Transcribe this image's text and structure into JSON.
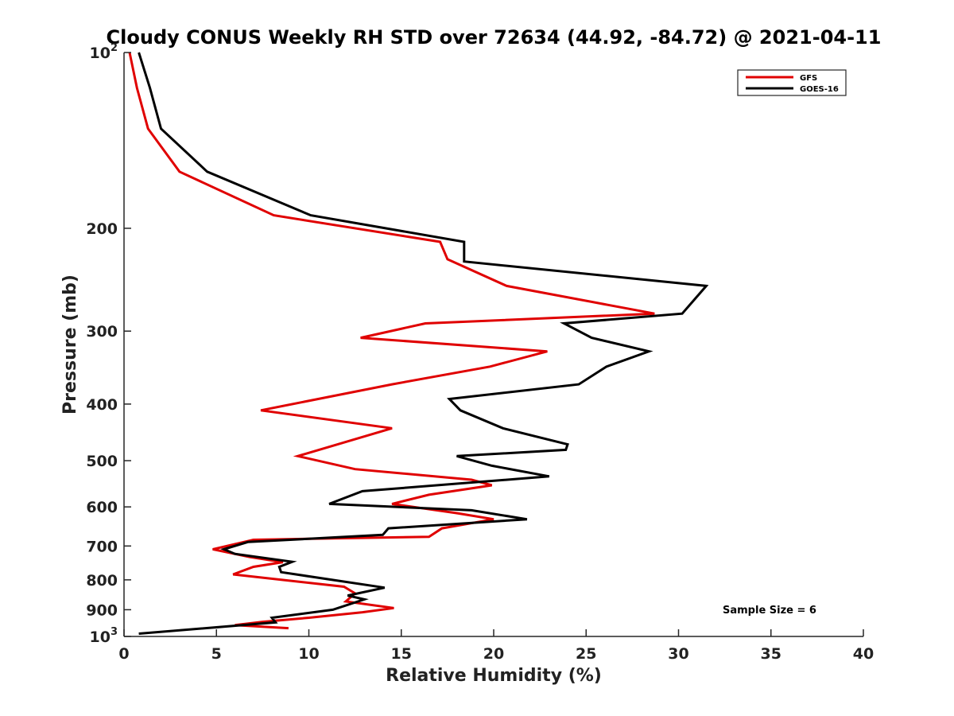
{
  "chart_data": {
    "type": "line",
    "title": "Cloudy CONUS Weekly RH STD over 72634 (44.92, -84.72) @ 2021-04-11",
    "xlabel": "Relative Humidity (%)",
    "ylabel": "Pressure (mb)",
    "xlim": [
      0,
      40
    ],
    "ylim": [
      100,
      1000
    ],
    "y_scale": "log",
    "y_reversed": true,
    "x_ticks": [
      0,
      5,
      10,
      15,
      20,
      25,
      30,
      35,
      40
    ],
    "x_tick_labels": [
      "0",
      "5",
      "10",
      "15",
      "20",
      "25",
      "30",
      "35",
      "40"
    ],
    "y_ticks": [
      {
        "value": 100,
        "label": "10",
        "sup": "2"
      },
      {
        "value": 200,
        "label": "200",
        "sup": ""
      },
      {
        "value": 300,
        "label": "300",
        "sup": ""
      },
      {
        "value": 400,
        "label": "400",
        "sup": ""
      },
      {
        "value": 500,
        "label": "500",
        "sup": ""
      },
      {
        "value": 600,
        "label": "600",
        "sup": ""
      },
      {
        "value": 700,
        "label": "700",
        "sup": ""
      },
      {
        "value": 800,
        "label": "800",
        "sup": ""
      },
      {
        "value": 900,
        "label": "900",
        "sup": ""
      },
      {
        "value": 1000,
        "label": "10",
        "sup": "3"
      }
    ],
    "grid": false,
    "legend_position": "top-right",
    "annotation": "Sample Size = 6",
    "series": [
      {
        "name": "GFS",
        "color": "#e00000",
        "points": [
          [
            0.3,
            100
          ],
          [
            0.7,
            115
          ],
          [
            1.3,
            135
          ],
          [
            3.0,
            160
          ],
          [
            8.1,
            190
          ],
          [
            17.1,
            211
          ],
          [
            17.5,
            226
          ],
          [
            20.7,
            251
          ],
          [
            28.7,
            280
          ],
          [
            16.3,
            291
          ],
          [
            12.8,
            308
          ],
          [
            22.9,
            325
          ],
          [
            19.8,
            345
          ],
          [
            14.5,
            370
          ],
          [
            7.4,
            410
          ],
          [
            14.5,
            440
          ],
          [
            9.4,
            491
          ],
          [
            12.5,
            517
          ],
          [
            18.8,
            539
          ],
          [
            19.9,
            551
          ],
          [
            16.5,
            572
          ],
          [
            14.5,
            593
          ],
          [
            18.0,
            615
          ],
          [
            20.0,
            630
          ],
          [
            17.2,
            653
          ],
          [
            16.5,
            675
          ],
          [
            7.0,
            683
          ],
          [
            4.8,
            709
          ],
          [
            6.8,
            731
          ],
          [
            8.6,
            746
          ],
          [
            7.0,
            760
          ],
          [
            5.9,
            783
          ],
          [
            11.9,
            822
          ],
          [
            12.5,
            844
          ],
          [
            12.0,
            871
          ],
          [
            14.6,
            894
          ],
          [
            12.9,
            909
          ],
          [
            10.0,
            929
          ],
          [
            7.5,
            944
          ],
          [
            6.0,
            956
          ],
          [
            8.9,
            968
          ]
        ]
      },
      {
        "name": "GOES-16",
        "color": "#000000",
        "points": [
          [
            0.8,
            100
          ],
          [
            1.4,
            115
          ],
          [
            2.0,
            135
          ],
          [
            4.5,
            160
          ],
          [
            10.1,
            190
          ],
          [
            18.4,
            211
          ],
          [
            18.4,
            228
          ],
          [
            31.5,
            251
          ],
          [
            30.2,
            280
          ],
          [
            23.8,
            291
          ],
          [
            25.3,
            308
          ],
          [
            28.4,
            325
          ],
          [
            26.1,
            345
          ],
          [
            24.6,
            370
          ],
          [
            17.6,
            392
          ],
          [
            18.2,
            410
          ],
          [
            20.5,
            440
          ],
          [
            24.0,
            469
          ],
          [
            23.9,
            479
          ],
          [
            18.0,
            491
          ],
          [
            19.9,
            510
          ],
          [
            23.0,
            532
          ],
          [
            12.9,
            564
          ],
          [
            11.1,
            593
          ],
          [
            18.8,
            608
          ],
          [
            21.8,
            630
          ],
          [
            14.3,
            653
          ],
          [
            14.0,
            670
          ],
          [
            6.7,
            689
          ],
          [
            5.4,
            709
          ],
          [
            6.0,
            722
          ],
          [
            9.1,
            745
          ],
          [
            8.4,
            760
          ],
          [
            8.5,
            776
          ],
          [
            14.1,
            825
          ],
          [
            12.1,
            851
          ],
          [
            13.0,
            864
          ],
          [
            11.3,
            900
          ],
          [
            8.0,
            929
          ],
          [
            8.2,
            946
          ],
          [
            0.8,
            989
          ]
        ]
      }
    ]
  }
}
